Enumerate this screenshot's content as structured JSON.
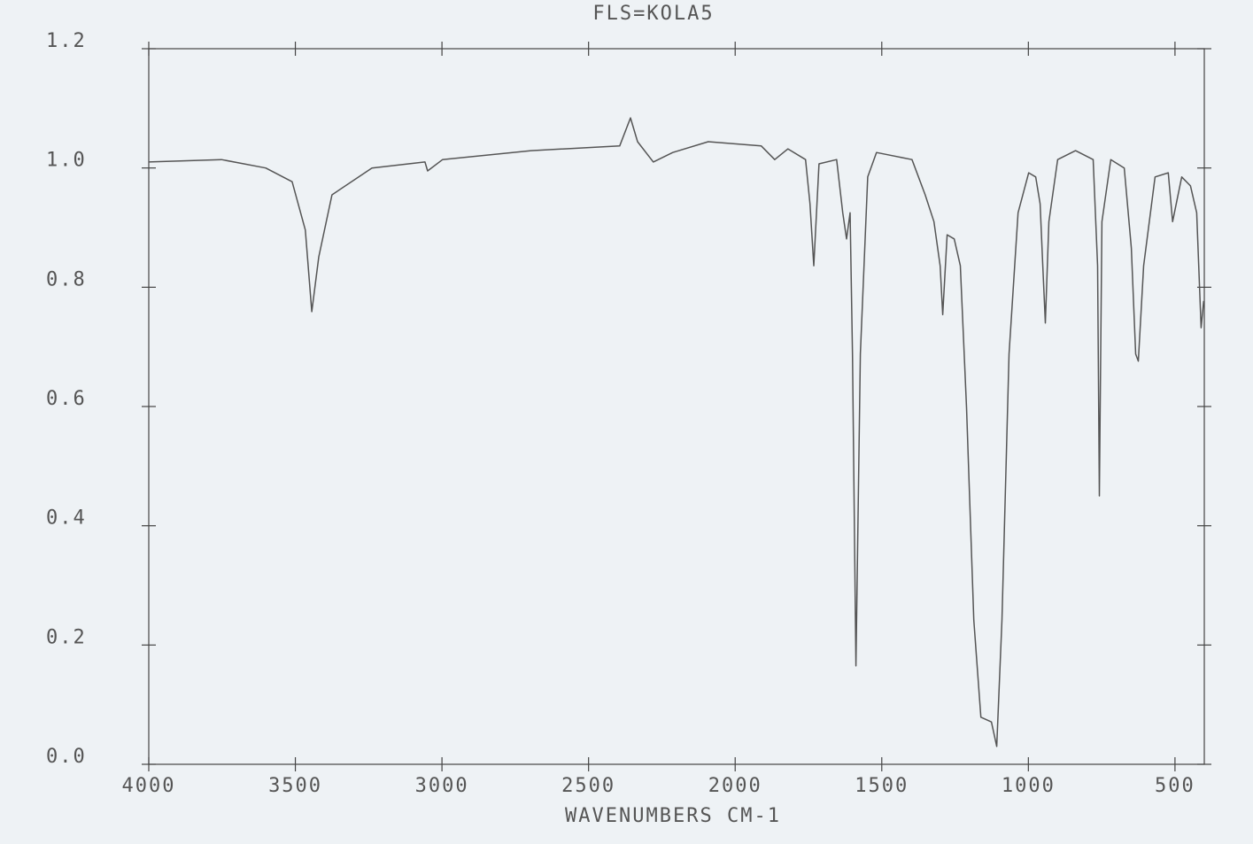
{
  "chart_data": {
    "type": "line",
    "title": "FLS=KOLA5",
    "x_label": "WAVENUMBERS CM-1",
    "xlim": [
      4000,
      400
    ],
    "xticks": [
      4000,
      3500,
      3000,
      2500,
      2000,
      1500,
      1000,
      500
    ],
    "ylim": [
      0,
      1.2
    ],
    "yticks": [
      {
        "value": 0,
        "label": "0.0"
      },
      0.2,
      0.4,
      0.6,
      0.8,
      {
        "value": 1,
        "label": "1.0"
      },
      1.2
    ],
    "color": "#555555",
    "x": [
      4000,
      3752,
      3601,
      3511,
      3466,
      3444,
      3420,
      3375,
      3239,
      3058,
      3049,
      2998,
      2696,
      2394,
      2357,
      2333,
      2279,
      2213,
      2092,
      1911,
      1865,
      1820,
      1760,
      1745,
      1732,
      1714,
      1654,
      1633,
      1620,
      1608,
      1600,
      1588,
      1573,
      1548,
      1518,
      1397,
      1352,
      1322,
      1301,
      1292,
      1277,
      1253,
      1232,
      1211,
      1186,
      1162,
      1126,
      1108,
      1090,
      1066,
      1035,
      999,
      975,
      960,
      951,
      942,
      930,
      900,
      839,
      779,
      764,
      758,
      749,
      719,
      673,
      649,
      634,
      625,
      607,
      568,
      523,
      508,
      477,
      447,
      426,
      411,
      402
    ],
    "values": [
      1.01,
      1.014,
      1.0,
      0.977,
      0.896,
      0.759,
      0.851,
      0.955,
      1.0,
      1.01,
      0.995,
      1.014,
      1.029,
      1.037,
      1.084,
      1.044,
      1.01,
      1.026,
      1.044,
      1.037,
      1.014,
      1.032,
      1.014,
      0.94,
      0.836,
      1.007,
      1.014,
      0.925,
      0.881,
      0.925,
      0.688,
      0.165,
      0.688,
      0.985,
      1.026,
      1.014,
      0.955,
      0.91,
      0.836,
      0.754,
      0.888,
      0.881,
      0.836,
      0.598,
      0.242,
      0.079,
      0.071,
      0.03,
      0.242,
      0.688,
      0.925,
      0.992,
      0.985,
      0.94,
      0.836,
      0.74,
      0.91,
      1.014,
      1.029,
      1.014,
      0.836,
      0.45,
      0.91,
      1.014,
      1.0,
      0.866,
      0.688,
      0.676,
      0.836,
      0.985,
      0.992,
      0.91,
      0.985,
      0.97,
      0.925,
      0.732,
      0.777
    ]
  }
}
